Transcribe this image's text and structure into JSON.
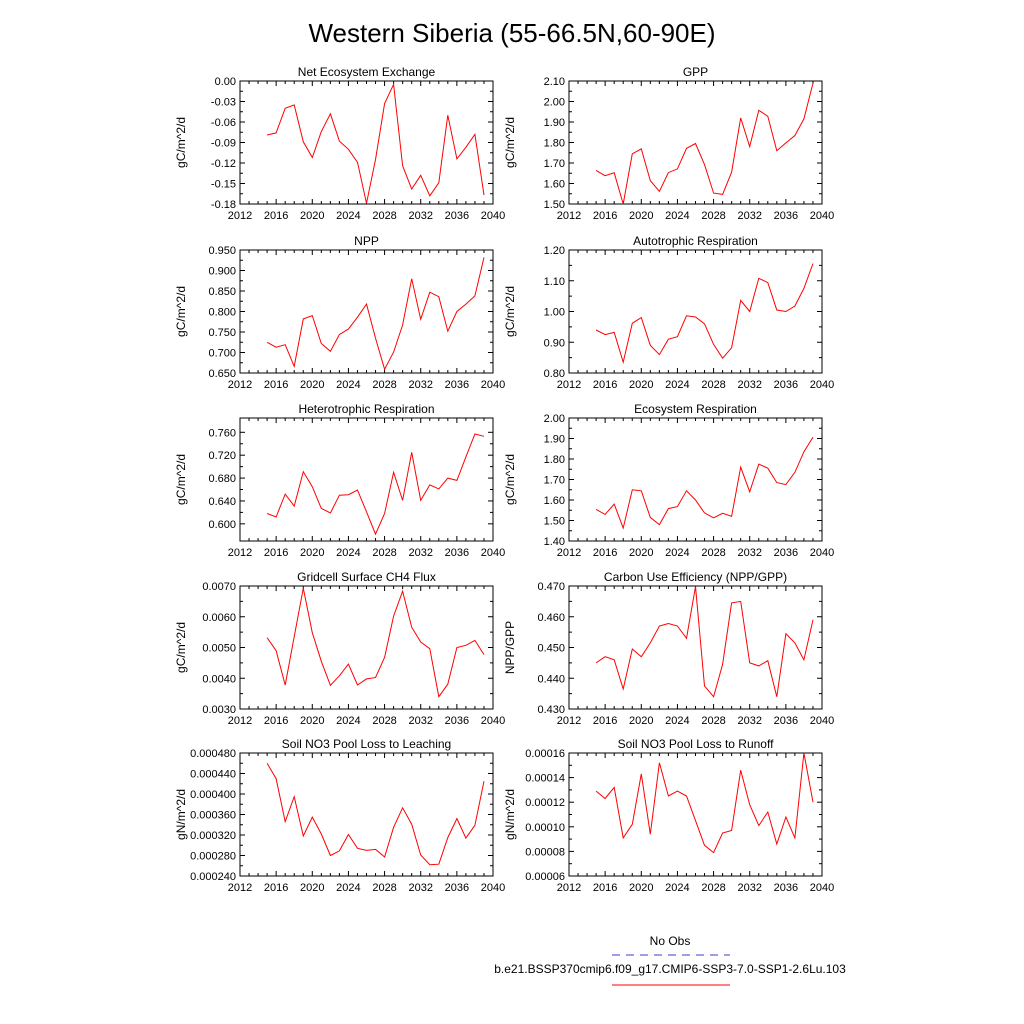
{
  "title": "Western Siberia (55-66.5N,60-90E)",
  "colors": {
    "model": "#ff0000",
    "obs": "#3b3bd0",
    "frame": "#000000"
  },
  "legend": {
    "obs_label": "No Obs",
    "model_label": "b.e21.BSSP370cmip6.f09_g17.CMIP6-SSP3-7.0-SSP1-2.6Lu.103"
  },
  "years": [
    2015,
    2016,
    2017,
    2018,
    2019,
    2020,
    2021,
    2022,
    2023,
    2024,
    2025,
    2026,
    2027,
    2028,
    2029,
    2030,
    2031,
    2032,
    2033,
    2034,
    2035,
    2036,
    2037,
    2038,
    2039
  ],
  "chart_data": [
    {
      "type": "line",
      "title": "Net Ecosystem Exchange",
      "ylabel": "gC/m^2/d",
      "xlim": [
        2012,
        2040
      ],
      "ylim": [
        -0.18,
        0.0
      ],
      "xticks": [
        "2012",
        "2016",
        "2020",
        "2024",
        "2028",
        "2032",
        "2036",
        "2040"
      ],
      "yticks": [
        "0.00",
        "-0.03",
        "-0.06",
        "-0.09",
        "-0.12",
        "-0.15",
        "-0.18"
      ],
      "ytick_values": [
        0.0,
        -0.03,
        -0.06,
        -0.09,
        -0.12,
        -0.15,
        -0.18
      ],
      "series": [
        {
          "values": [
            -0.079,
            -0.076,
            -0.04,
            -0.035,
            -0.089,
            -0.112,
            -0.074,
            -0.048,
            -0.088,
            -0.1,
            -0.119,
            -0.179,
            -0.115,
            -0.033,
            -0.005,
            -0.124,
            -0.158,
            -0.138,
            -0.168,
            -0.149,
            -0.05,
            -0.114,
            -0.097,
            -0.078,
            -0.167
          ]
        }
      ]
    },
    {
      "type": "line",
      "title": "GPP",
      "ylabel": "gC/m^2/d",
      "xlim": [
        2012,
        2040
      ],
      "ylim": [
        1.5,
        2.1
      ],
      "xticks": [
        "2012",
        "2016",
        "2020",
        "2024",
        "2028",
        "2032",
        "2036",
        "2040"
      ],
      "yticks": [
        "2.10",
        "2.00",
        "1.90",
        "1.80",
        "1.70",
        "1.60",
        "1.50"
      ],
      "ytick_values": [
        2.1,
        2.0,
        1.9,
        1.8,
        1.7,
        1.6,
        1.5
      ],
      "series": [
        {
          "values": [
            1.664,
            1.638,
            1.652,
            1.5,
            1.745,
            1.769,
            1.614,
            1.562,
            1.653,
            1.671,
            1.771,
            1.795,
            1.692,
            1.553,
            1.547,
            1.655,
            1.92,
            1.78,
            1.957,
            1.928,
            1.76,
            1.798,
            1.834,
            1.915,
            2.09
          ]
        }
      ]
    },
    {
      "type": "line",
      "title": "NPP",
      "ylabel": "gC/m^2/d",
      "xlim": [
        2012,
        2040
      ],
      "ylim": [
        0.65,
        0.95
      ],
      "xticks": [
        "2012",
        "2016",
        "2020",
        "2024",
        "2028",
        "2032",
        "2036",
        "2040"
      ],
      "yticks": [
        "0.950",
        "0.900",
        "0.850",
        "0.800",
        "0.750",
        "0.700",
        "0.650"
      ],
      "ytick_values": [
        0.95,
        0.9,
        0.85,
        0.8,
        0.75,
        0.7,
        0.65
      ],
      "series": [
        {
          "values": [
            0.725,
            0.713,
            0.719,
            0.666,
            0.782,
            0.79,
            0.722,
            0.703,
            0.744,
            0.757,
            0.786,
            0.818,
            0.735,
            0.659,
            0.701,
            0.767,
            0.88,
            0.781,
            0.847,
            0.836,
            0.752,
            0.8,
            0.818,
            0.838,
            0.932
          ]
        }
      ]
    },
    {
      "type": "line",
      "title": "Autotrophic Respiration",
      "ylabel": "gC/m^2/d",
      "xlim": [
        2012,
        2040
      ],
      "ylim": [
        0.8,
        1.2
      ],
      "xticks": [
        "2012",
        "2016",
        "2020",
        "2024",
        "2028",
        "2032",
        "2036",
        "2040"
      ],
      "yticks": [
        "1.20",
        "1.10",
        "1.00",
        "0.90",
        "0.80"
      ],
      "ytick_values": [
        1.2,
        1.1,
        1.0,
        0.9,
        0.8
      ],
      "series": [
        {
          "values": [
            0.94,
            0.925,
            0.932,
            0.835,
            0.962,
            0.98,
            0.89,
            0.86,
            0.91,
            0.918,
            0.986,
            0.982,
            0.96,
            0.893,
            0.848,
            0.882,
            1.036,
            1.0,
            1.108,
            1.094,
            1.005,
            1.0,
            1.018,
            1.075,
            1.156
          ]
        }
      ]
    },
    {
      "type": "line",
      "title": "Heterotrophic Respiration",
      "ylabel": "gC/m^2/d",
      "xlim": [
        2012,
        2040
      ],
      "ylim": [
        0.57,
        0.785
      ],
      "xticks": [
        "2012",
        "2016",
        "2020",
        "2024",
        "2028",
        "2032",
        "2036",
        "2040"
      ],
      "yticks": [
        "0.760",
        "0.720",
        "0.680",
        "0.640",
        "0.600"
      ],
      "ytick_values": [
        0.76,
        0.72,
        0.68,
        0.64,
        0.6
      ],
      "series": [
        {
          "values": [
            0.618,
            0.612,
            0.652,
            0.631,
            0.691,
            0.665,
            0.627,
            0.619,
            0.65,
            0.651,
            0.659,
            0.621,
            0.582,
            0.618,
            0.69,
            0.641,
            0.725,
            0.641,
            0.668,
            0.661,
            0.68,
            0.676,
            0.717,
            0.757,
            0.753
          ]
        }
      ]
    },
    {
      "type": "line",
      "title": "Ecosystem Respiration",
      "ylabel": "gC/m^2/d",
      "xlim": [
        2012,
        2040
      ],
      "ylim": [
        1.4,
        2.0
      ],
      "xticks": [
        "2012",
        "2016",
        "2020",
        "2024",
        "2028",
        "2032",
        "2036",
        "2040"
      ],
      "yticks": [
        "2.00",
        "1.90",
        "1.80",
        "1.70",
        "1.60",
        "1.50",
        "1.40"
      ],
      "ytick_values": [
        2.0,
        1.9,
        1.8,
        1.7,
        1.6,
        1.5,
        1.4
      ],
      "series": [
        {
          "values": [
            1.554,
            1.53,
            1.58,
            1.463,
            1.65,
            1.645,
            1.515,
            1.48,
            1.558,
            1.568,
            1.645,
            1.6,
            1.537,
            1.513,
            1.535,
            1.52,
            1.76,
            1.64,
            1.775,
            1.755,
            1.685,
            1.675,
            1.735,
            1.835,
            1.907
          ]
        }
      ]
    },
    {
      "type": "line",
      "title": "Gridcell Surface CH4 Flux",
      "ylabel": "gC/m^2/d",
      "xlim": [
        2012,
        2040
      ],
      "ylim": [
        0.003,
        0.007
      ],
      "xticks": [
        "2012",
        "2016",
        "2020",
        "2024",
        "2028",
        "2032",
        "2036",
        "2040"
      ],
      "yticks": [
        "0.0070",
        "0.0060",
        "0.0050",
        "0.0040",
        "0.0030"
      ],
      "ytick_values": [
        0.007,
        0.006,
        0.005,
        0.004,
        0.003
      ],
      "series": [
        {
          "values": [
            0.00532,
            0.0049,
            0.00378,
            0.00535,
            0.00693,
            0.00548,
            0.00455,
            0.00377,
            0.00408,
            0.00446,
            0.00378,
            0.00398,
            0.00402,
            0.00468,
            0.00602,
            0.00683,
            0.00566,
            0.00518,
            0.00496,
            0.0034,
            0.00381,
            0.005,
            0.00507,
            0.00523,
            0.00477
          ]
        }
      ]
    },
    {
      "type": "line",
      "title": "Carbon Use Efficiency (NPP/GPP)",
      "ylabel": "NPP/GPP",
      "xlim": [
        2012,
        2040
      ],
      "ylim": [
        0.43,
        0.47
      ],
      "xticks": [
        "2012",
        "2016",
        "2020",
        "2024",
        "2028",
        "2032",
        "2036",
        "2040"
      ],
      "yticks": [
        "0.470",
        "0.460",
        "0.450",
        "0.440",
        "0.430"
      ],
      "ytick_values": [
        0.47,
        0.46,
        0.45,
        0.44,
        0.43
      ],
      "series": [
        {
          "values": [
            0.445,
            0.447,
            0.446,
            0.4365,
            0.4495,
            0.447,
            0.4515,
            0.457,
            0.4578,
            0.457,
            0.453,
            0.4698,
            0.4375,
            0.434,
            0.4445,
            0.4645,
            0.465,
            0.445,
            0.444,
            0.4457,
            0.434,
            0.4545,
            0.4515,
            0.446,
            0.459
          ]
        }
      ]
    },
    {
      "type": "line",
      "title": "Soil NO3 Pool Loss to Leaching",
      "ylabel": "gN/m^2/d",
      "xlim": [
        2012,
        2040
      ],
      "ylim": [
        0.00024,
        0.00048
      ],
      "xticks": [
        "2012",
        "2016",
        "2020",
        "2024",
        "2028",
        "2032",
        "2036",
        "2040"
      ],
      "yticks": [
        "0.000480",
        "0.000440",
        "0.000400",
        "0.000360",
        "0.000320",
        "0.000280",
        "0.000240"
      ],
      "ytick_values": [
        0.00048,
        0.00044,
        0.0004,
        0.00036,
        0.00032,
        0.00028,
        0.00024
      ],
      "series": [
        {
          "values": [
            0.00046,
            0.00043,
            0.000346,
            0.000395,
            0.000318,
            0.000355,
            0.000322,
            0.00028,
            0.000289,
            0.000321,
            0.000294,
            0.00029,
            0.000292,
            0.000277,
            0.000335,
            0.000373,
            0.000341,
            0.000281,
            0.000262,
            0.000263,
            0.000315,
            0.000352,
            0.000314,
            0.000339,
            0.000425
          ]
        }
      ]
    },
    {
      "type": "line",
      "title": "Soil NO3 Pool Loss to Runoff",
      "ylabel": "gN/m^2/d",
      "xlim": [
        2012,
        2040
      ],
      "ylim": [
        6e-05,
        0.00016
      ],
      "xticks": [
        "2012",
        "2016",
        "2020",
        "2024",
        "2028",
        "2032",
        "2036",
        "2040"
      ],
      "yticks": [
        "0.00016",
        "0.00014",
        "0.00012",
        "0.00010",
        "0.00008",
        "0.00006"
      ],
      "ytick_values": [
        0.00016,
        0.00014,
        0.00012,
        0.0001,
        8e-05,
        6e-05
      ],
      "series": [
        {
          "values": [
            0.000129,
            0.000123,
            0.000132,
            9.1e-05,
            0.000102,
            0.000143,
            9.4e-05,
            0.000152,
            0.000125,
            0.000129,
            0.000125,
            0.000105,
            8.5e-05,
            7.9e-05,
            9.5e-05,
            9.7e-05,
            0.000146,
            0.000118,
            0.000101,
            0.000112,
            8.6e-05,
            0.000108,
            9.1e-05,
            0.00016,
            0.00012
          ]
        }
      ]
    }
  ]
}
